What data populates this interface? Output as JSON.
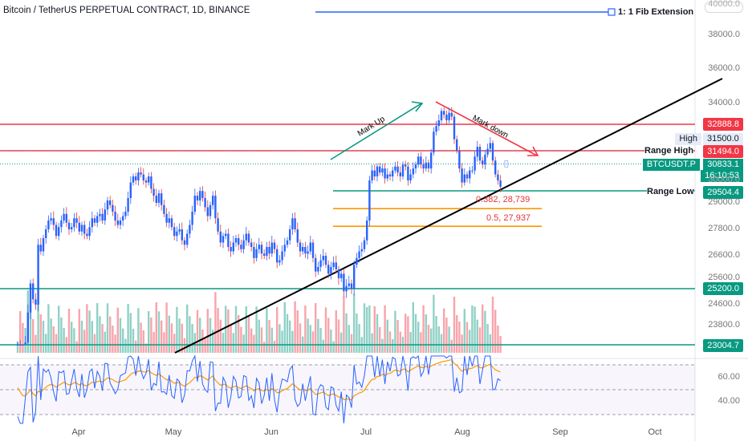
{
  "header": {
    "title": "Bitcoin / TetherUS PERPETUAL CONTRACT, 1D, BINANCE"
  },
  "colors": {
    "up": "#2962ff",
    "down": "#2962ff",
    "green": "#089981",
    "red": "#f23645",
    "orange": "#ff9800",
    "black": "#000000"
  },
  "chart_data": {
    "type": "candlestick",
    "price_axis": {
      "ticks": [
        "40000.0",
        "38000.0",
        "36000.0",
        "34000.0",
        "30000.0",
        "29000.0",
        "27800.0",
        "26600.0",
        "25600.0",
        "24600.0",
        "23800.0"
      ],
      "tick_values": [
        40000,
        38000,
        36000,
        34000,
        30000,
        29000,
        27800,
        26600,
        25600,
        24600,
        23800
      ]
    },
    "time_axis": {
      "labels": [
        "Apr",
        "May",
        "Jun",
        "Jul",
        "Aug",
        "Sep",
        "Oct"
      ]
    },
    "levels": [
      {
        "price": 32888.8,
        "label": "32888.8",
        "color": "red"
      },
      {
        "price": 31494.0,
        "label": "31494.0",
        "name": "Range High",
        "color": "red"
      },
      {
        "price": 29504.4,
        "label": "29504.4",
        "name": "Range Low",
        "color": "green"
      },
      {
        "price": 25200.0,
        "label": "25200.0",
        "color": "green"
      },
      {
        "price": 23004.7,
        "label": "23004.7",
        "color": "green"
      }
    ],
    "last_price": {
      "symbol": "BTCUSDT.P",
      "price": "30833.1",
      "countdown": "16:10:53"
    },
    "high_marker": {
      "label": "High",
      "price": "31500.0"
    },
    "fib_levels": [
      {
        "label": "0.382, 28,739",
        "price": 28739
      },
      {
        "label": "0.5, 27,937",
        "price": 27937
      }
    ],
    "annotations": [
      "Mark Up",
      "Mark down"
    ],
    "extension_label": "1: 1 Fib Extension",
    "candles_close": [
      23000,
      22700,
      22500,
      23100,
      24300,
      25400,
      24800,
      24600,
      27100,
      26800,
      27400,
      27800,
      28200,
      28300,
      28000,
      27500,
      27900,
      28200,
      28500,
      28100,
      27800,
      27900,
      28300,
      28100,
      27700,
      28000,
      27600,
      27500,
      27900,
      28300,
      28100,
      28400,
      28500,
      28200,
      28700,
      29100,
      28900,
      28600,
      28200,
      28000,
      28200,
      28400,
      28600,
      29200,
      29900,
      30200,
      30000,
      30400,
      30300,
      30000,
      29900,
      30200,
      29600,
      29300,
      29000,
      29400,
      28900,
      28500,
      28100,
      28300,
      27900,
      27500,
      27700,
      27800,
      27300,
      27100,
      27600,
      28000,
      28600,
      29300,
      29100,
      29500,
      29200,
      28800,
      28400,
      28900,
      29300,
      28300,
      27700,
      27200,
      27500,
      27600,
      27000,
      26800,
      27200,
      27400,
      27100,
      26900,
      27300,
      27600,
      27200,
      27000,
      26500,
      26900,
      27100,
      26700,
      26600,
      27000,
      26700,
      27200,
      26900,
      26300,
      26400,
      26800,
      27100,
      27300,
      27800,
      28300,
      27800,
      27200,
      26800,
      27000,
      26700,
      26800,
      27200,
      26500,
      25900,
      26100,
      26400,
      26600,
      26200,
      25800,
      26100,
      26300,
      26000,
      25600,
      25800,
      25100,
      25300,
      25400,
      25200,
      26200,
      26500,
      26800,
      26900,
      27300,
      28200,
      30000,
      30500,
      30200,
      30700,
      30400,
      30600,
      30100,
      30300,
      30200,
      30500,
      30700,
      30400,
      30200,
      30800,
      30700,
      30000,
      30300,
      30600,
      30800,
      31200,
      30800,
      30600,
      30900,
      30600,
      31400,
      32500,
      32800,
      33100,
      33600,
      33400,
      33100,
      33500,
      33300,
      32100,
      31500,
      30600,
      29900,
      30300,
      30100,
      30500,
      30500,
      31200,
      31700,
      31000,
      30800,
      31300,
      31600,
      31900,
      31000,
      30300,
      30000,
      29700
    ]
  },
  "rsi": {
    "ticks": [
      "60.00",
      "40.00"
    ]
  }
}
